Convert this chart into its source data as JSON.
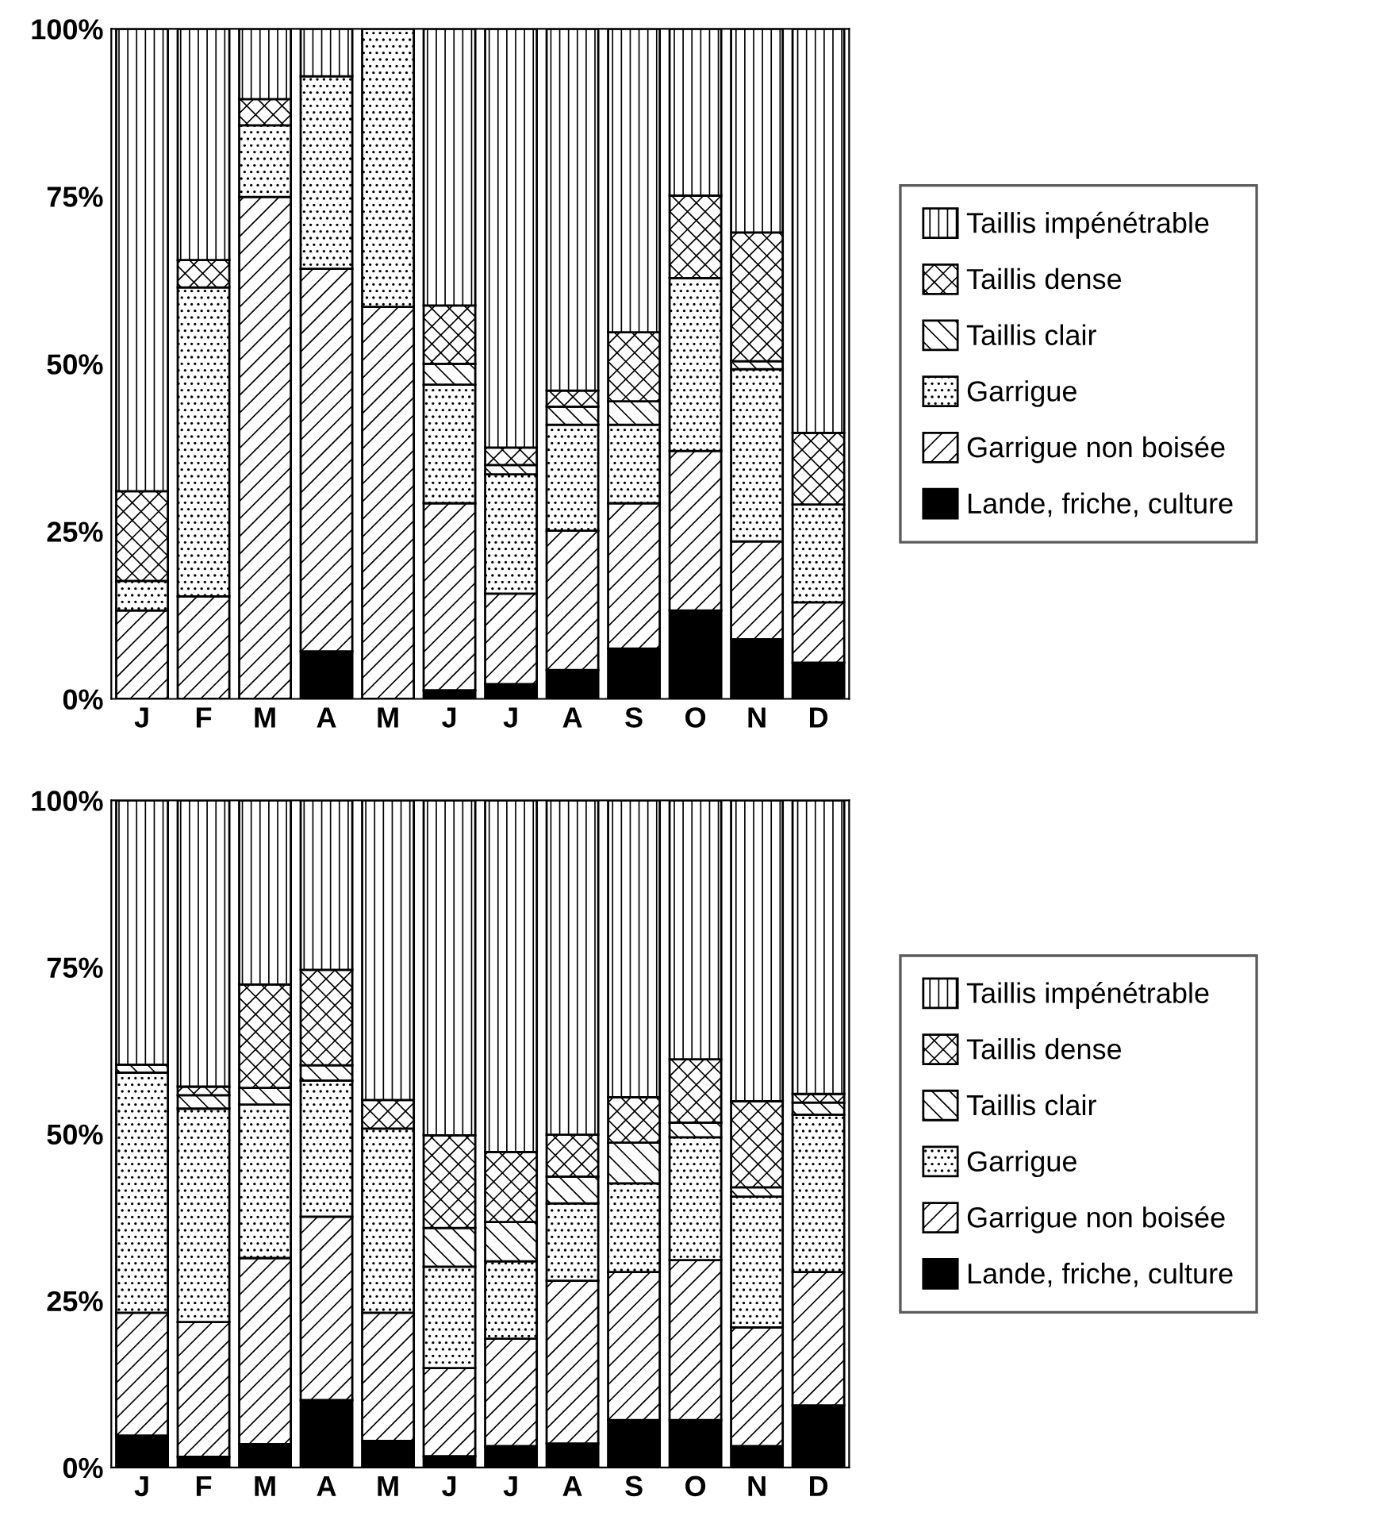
{
  "chart_data": [
    {
      "type": "bar",
      "stacked": true,
      "categories": [
        "J",
        "F",
        "M",
        "A",
        "M",
        "J",
        "J",
        "A",
        "S",
        "O",
        "N",
        "D"
      ],
      "ylim": [
        0,
        100
      ],
      "yticks": [
        {
          "value": 0,
          "label": "0%"
        },
        {
          "value": 25,
          "label": "25%"
        },
        {
          "value": 50,
          "label": "50%"
        },
        {
          "value": 75,
          "label": "75%"
        },
        {
          "value": 100,
          "label": "100%"
        }
      ],
      "grid": false,
      "legend": "right",
      "series": [
        {
          "name": "Lande, friche, culture",
          "color": "#000000",
          "values": [
            0,
            0,
            0,
            7.1,
            0,
            1.3,
            2.2,
            4.3,
            7.5,
            13.2,
            8.9,
            5.4
          ]
        },
        {
          "name": "Garrigue non boisée",
          "color": "#000000",
          "values": [
            13.2,
            15.3,
            74.9,
            57.1,
            58.5,
            27.9,
            13.5,
            20.8,
            21.7,
            23.8,
            14.6,
            9.0
          ]
        },
        {
          "name": "Garrigue",
          "color": "#000000",
          "values": [
            4.4,
            46.1,
            10.7,
            28.7,
            41.5,
            17.7,
            17.8,
            15.8,
            11.7,
            25.8,
            25.7,
            14.6
          ]
        },
        {
          "name": "Taillis clair",
          "color": "#000000",
          "values": [
            0,
            0,
            0,
            0,
            0,
            3.1,
            1.4,
            2.7,
            3.5,
            0,
            1.2,
            0
          ]
        },
        {
          "name": "Taillis dense",
          "color": "#000000",
          "values": [
            13.4,
            4.1,
            3.9,
            0,
            0,
            8.7,
            2.6,
            2.4,
            10.3,
            12.3,
            19.2,
            10.7
          ]
        },
        {
          "name": "Taillis impénétrable",
          "color": "#000000",
          "values": [
            69.0,
            34.5,
            10.5,
            7.1,
            0,
            41.3,
            62.5,
            54.0,
            45.3,
            24.9,
            30.4,
            60.3
          ]
        }
      ]
    },
    {
      "type": "bar",
      "stacked": true,
      "categories": [
        "J",
        "F",
        "M",
        "A",
        "M",
        "J",
        "J",
        "A",
        "S",
        "O",
        "N",
        "D"
      ],
      "ylim": [
        0,
        100
      ],
      "yticks": [
        {
          "value": 0,
          "label": "0%"
        },
        {
          "value": 25,
          "label": "25%"
        },
        {
          "value": 50,
          "label": "50%"
        },
        {
          "value": 75,
          "label": "75%"
        },
        {
          "value": 100,
          "label": "100%"
        }
      ],
      "grid": false,
      "legend": "right",
      "series": [
        {
          "name": "Lande, friche, culture",
          "color": "#000000",
          "values": [
            4.8,
            1.6,
            3.5,
            10.1,
            4.0,
            1.7,
            3.2,
            3.6,
            7.1,
            7.1,
            3.2,
            9.3
          ]
        },
        {
          "name": "Garrigue non boisée",
          "color": "#000000",
          "values": [
            18.4,
            20.2,
            27.9,
            27.5,
            19.2,
            13.2,
            16.1,
            24.4,
            22.2,
            24.0,
            17.8,
            20.0
          ]
        },
        {
          "name": "Garrigue",
          "color": "#000000",
          "values": [
            36.0,
            32.0,
            23.0,
            20.4,
            27.6,
            15.2,
            11.6,
            11.6,
            13.3,
            18.4,
            19.6,
            23.6
          ]
        },
        {
          "name": "Taillis clair",
          "color": "#000000",
          "values": [
            1.2,
            2.0,
            2.5,
            2.3,
            0,
            5.8,
            5.9,
            4.0,
            6.1,
            2.2,
            1.4,
            1.8
          ]
        },
        {
          "name": "Taillis dense",
          "color": "#000000",
          "values": [
            0,
            1.3,
            15.5,
            14.3,
            4.3,
            13.9,
            10.5,
            6.3,
            6.8,
            9.5,
            12.9,
            1.3
          ]
        },
        {
          "name": "Taillis impénétrable",
          "color": "#000000",
          "values": [
            39.6,
            42.9,
            27.6,
            25.4,
            44.9,
            50.2,
            52.7,
            50.1,
            44.5,
            38.8,
            45.1,
            44.0
          ]
        }
      ]
    }
  ]
}
